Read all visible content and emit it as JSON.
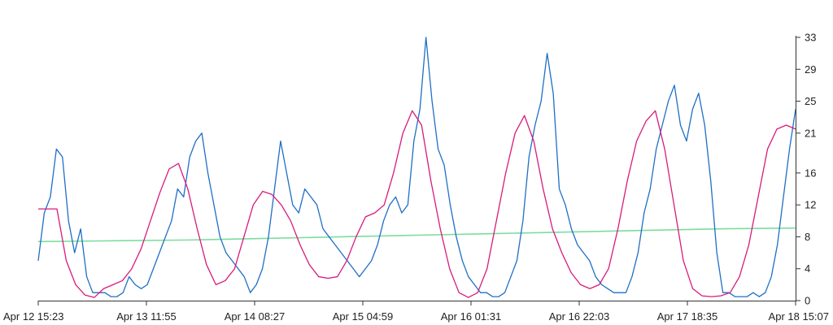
{
  "chart_data": {
    "type": "line",
    "title": "",
    "xlabel": "",
    "ylabel": "",
    "x_ticks": [
      "Apr 12 15:23",
      "Apr 13 11:55",
      "Apr 14 08:27",
      "Apr 15 04:59",
      "Apr 16 01:31",
      "Apr 16 22:03",
      "Apr 17 18:35",
      "Apr 18 15:07"
    ],
    "x_range": [
      "Apr 12 15:23",
      "Apr 18 15:07"
    ],
    "y_ticks": [
      0,
      4,
      8,
      12,
      16,
      21,
      25,
      29,
      33
    ],
    "ylim": [
      0,
      33
    ],
    "y_axis_position": "right",
    "grid": false,
    "legend": "none",
    "series": [
      {
        "color": "#1f6fc5",
        "x_step_hours": 2,
        "values": [
          5,
          11,
          13,
          19,
          18,
          10,
          6,
          9,
          3,
          1,
          1,
          1,
          0.5,
          0.5,
          1,
          3,
          2,
          1.5,
          2,
          4,
          6,
          8,
          10,
          14,
          13,
          18,
          20,
          21,
          16,
          12,
          8,
          6,
          5,
          4,
          3,
          1,
          2,
          4,
          8,
          14,
          20,
          16,
          12,
          11,
          14,
          13,
          12,
          9,
          8,
          7,
          6,
          5,
          4,
          3,
          4,
          5,
          7,
          10,
          12,
          13,
          11,
          12,
          20,
          24,
          33,
          25,
          19,
          17,
          12,
          8,
          5,
          3,
          2,
          1,
          1,
          0.5,
          0.5,
          1,
          3,
          5,
          10,
          18,
          22,
          25,
          31,
          26,
          14,
          12,
          9,
          7,
          6,
          5,
          3,
          2,
          1.5,
          1,
          1,
          1,
          3,
          6,
          11,
          14,
          19,
          22,
          25,
          27,
          22,
          20,
          24,
          26,
          22,
          15,
          6,
          1,
          1,
          0.5,
          0.5,
          0.5,
          1,
          0.5,
          1,
          3,
          7,
          13,
          19,
          24
        ],
        "x_end": "Apr 18 15:07"
      },
      {
        "color": "#d81b7a",
        "x_step_hours": 2,
        "values": [
          11.5,
          11.5,
          11.5,
          5,
          2,
          0.7,
          0.4,
          1.5,
          2,
          2.5,
          4,
          6.5,
          10,
          13.5,
          16.5,
          17.2,
          14,
          9,
          4.5,
          2,
          2.5,
          4,
          8,
          12,
          13.7,
          13.3,
          12,
          10,
          7,
          4.5,
          3,
          2.8,
          3,
          5,
          8,
          10.5,
          11,
          12,
          16,
          21,
          23.8,
          22,
          15,
          9,
          4,
          1,
          0.4,
          1,
          4,
          10,
          16,
          21,
          23.2,
          20,
          14,
          9,
          6,
          3.5,
          2,
          1.5,
          2,
          4,
          9,
          15,
          20,
          22.5,
          23.8,
          19,
          12,
          5,
          1.5,
          0.6,
          0.5,
          0.6,
          1,
          3,
          7,
          13,
          19,
          21.5,
          22,
          21.5
        ],
        "x_end": "Apr 18 15:07"
      },
      {
        "color": "#7ddc9e",
        "values": [
          7.4,
          7.5,
          7.6,
          7.8,
          8.0,
          8.2,
          8.4,
          8.6,
          8.8,
          9.0,
          9.1
        ],
        "x_start": "Apr 12 15:23",
        "x_end": "Apr 18 15:07"
      }
    ]
  }
}
